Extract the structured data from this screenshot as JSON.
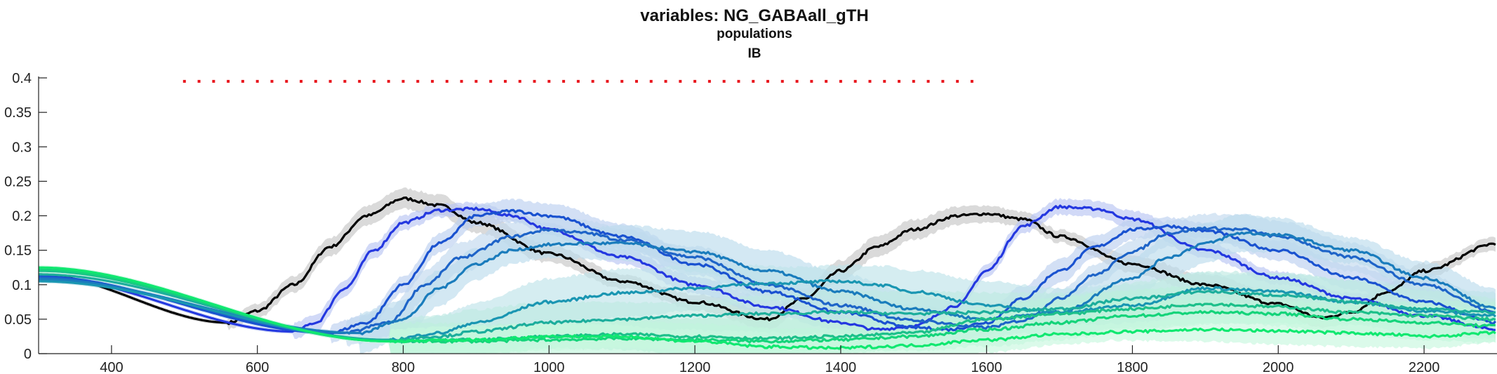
{
  "chart_data": {
    "type": "line",
    "title": "variables: NG_GABAall_gTH",
    "subtitle": "populations",
    "subtitle2": "IB",
    "xlabel": "",
    "ylabel": "",
    "xlim": [
      300,
      2300
    ],
    "ylim": [
      0,
      0.4
    ],
    "xticks": [
      400,
      600,
      800,
      1000,
      1200,
      1400,
      1600,
      1800,
      2000,
      2200
    ],
    "yticks": [
      0,
      0.05,
      0.1,
      0.15,
      0.2,
      0.25,
      0.3,
      0.35,
      0.4
    ],
    "ytick_labels": [
      "0",
      "0.05",
      "0.1",
      "0.15",
      "0.2",
      "0.25",
      "0.3",
      "0.35",
      "0.4"
    ],
    "grid": false,
    "legend": "none",
    "markers": {
      "color": "#e8141c",
      "y": 0.395,
      "x_start": 500,
      "x_end": 1580,
      "step": 20
    },
    "series": [
      {
        "color": "#000000",
        "band": "#c6c6c6",
        "bandwidth": 0.015,
        "x": [
          300,
          560,
          600,
          650,
          700,
          750,
          800,
          850,
          900,
          1000,
          1100,
          1200,
          1300,
          1350,
          1400,
          1450,
          1500,
          1560,
          1600,
          1650,
          1700,
          1800,
          1900,
          2000,
          2060,
          2100,
          2150,
          2200,
          2300
        ],
        "y": [
          0.115,
          0.045,
          0.062,
          0.1,
          0.155,
          0.2,
          0.225,
          0.215,
          0.19,
          0.145,
          0.105,
          0.075,
          0.05,
          0.08,
          0.12,
          0.155,
          0.18,
          0.2,
          0.203,
          0.195,
          0.17,
          0.13,
          0.1,
          0.072,
          0.052,
          0.06,
          0.09,
          0.12,
          0.16
        ]
      },
      {
        "color": "#2438e0",
        "band": "#b8c4f2",
        "bandwidth": 0.012,
        "x": [
          300,
          650,
          680,
          720,
          760,
          800,
          850,
          900,
          950,
          1000,
          1100,
          1200,
          1300,
          1400,
          1450,
          1500,
          1560,
          1600,
          1650,
          1700,
          1750,
          1800,
          1900,
          2000,
          2100,
          2200,
          2300
        ],
        "y": [
          0.112,
          0.032,
          0.045,
          0.095,
          0.15,
          0.19,
          0.208,
          0.21,
          0.2,
          0.18,
          0.14,
          0.1,
          0.068,
          0.045,
          0.035,
          0.04,
          0.07,
          0.12,
          0.185,
          0.213,
          0.21,
          0.195,
          0.15,
          0.11,
          0.08,
          0.055,
          0.035
        ]
      },
      {
        "color": "#1a52d0",
        "band": "#bcd0f0",
        "bandwidth": 0.018,
        "x": [
          300,
          700,
          750,
          800,
          850,
          900,
          950,
          1000,
          1100,
          1200,
          1300,
          1400,
          1500,
          1550,
          1600,
          1650,
          1700,
          1750,
          1800,
          1850,
          1900,
          2000,
          2100,
          2200,
          2300
        ],
        "y": [
          0.112,
          0.03,
          0.045,
          0.1,
          0.16,
          0.2,
          0.207,
          0.2,
          0.17,
          0.13,
          0.09,
          0.06,
          0.038,
          0.035,
          0.045,
          0.08,
          0.12,
          0.155,
          0.18,
          0.185,
          0.178,
          0.15,
          0.11,
          0.075,
          0.045
        ]
      },
      {
        "color": "#1e64c8",
        "band": "#c2d8ee",
        "bandwidth": 0.022,
        "x": [
          300,
          720,
          780,
          830,
          880,
          950,
          1000,
          1050,
          1100,
          1200,
          1300,
          1400,
          1500,
          1600,
          1650,
          1700,
          1750,
          1800,
          1850,
          1900,
          1950,
          2000,
          2100,
          2200,
          2300
        ],
        "y": [
          0.11,
          0.03,
          0.045,
          0.1,
          0.14,
          0.17,
          0.18,
          0.175,
          0.165,
          0.14,
          0.1,
          0.07,
          0.048,
          0.038,
          0.048,
          0.08,
          0.115,
          0.148,
          0.175,
          0.182,
          0.18,
          0.17,
          0.14,
          0.1,
          0.06
        ]
      },
      {
        "color": "#1a7cbc",
        "band": "#bcdcec",
        "bandwidth": 0.03,
        "x": [
          300,
          740,
          800,
          850,
          900,
          950,
          1000,
          1050,
          1100,
          1200,
          1300,
          1400,
          1500,
          1600,
          1700,
          1800,
          1850,
          1900,
          1950,
          2000,
          2100,
          2200,
          2300
        ],
        "y": [
          0.108,
          0.03,
          0.05,
          0.095,
          0.13,
          0.15,
          0.158,
          0.16,
          0.16,
          0.148,
          0.12,
          0.09,
          0.065,
          0.05,
          0.06,
          0.11,
          0.14,
          0.16,
          0.175,
          0.172,
          0.15,
          0.11,
          0.065
        ]
      },
      {
        "color": "#1a96b2",
        "band": "#bfe3ea",
        "bandwidth": 0.035,
        "x": [
          300,
          780,
          850,
          900,
          1000,
          1100,
          1200,
          1300,
          1400,
          1450,
          1500,
          1600,
          1700,
          1800,
          1900,
          2000,
          2100,
          2200,
          2300
        ],
        "y": [
          0.105,
          0.02,
          0.03,
          0.045,
          0.075,
          0.088,
          0.095,
          0.102,
          0.105,
          0.1,
          0.09,
          0.07,
          0.06,
          0.07,
          0.095,
          0.09,
          0.075,
          0.062,
          0.055
        ]
      },
      {
        "color": "#1cae9c",
        "band": "#bfe9e2",
        "bandwidth": 0.032,
        "x": [
          300,
          780,
          850,
          900,
          1000,
          1100,
          1200,
          1300,
          1400,
          1500,
          1600,
          1700,
          1800,
          1900,
          2000,
          2100,
          2200,
          2300
        ],
        "y": [
          0.115,
          0.02,
          0.025,
          0.032,
          0.045,
          0.05,
          0.055,
          0.058,
          0.06,
          0.058,
          0.06,
          0.065,
          0.08,
          0.09,
          0.085,
          0.075,
          0.065,
          0.06
        ]
      },
      {
        "color": "#1cc08a",
        "band": "#bdf0dc",
        "bandwidth": 0.028,
        "x": [
          300,
          780,
          900,
          1000,
          1100,
          1200,
          1300,
          1400,
          1500,
          1600,
          1700,
          1800,
          1900,
          2000,
          2100,
          2200,
          2300
        ],
        "y": [
          0.12,
          0.018,
          0.02,
          0.025,
          0.028,
          0.025,
          0.022,
          0.025,
          0.03,
          0.05,
          0.058,
          0.065,
          0.072,
          0.068,
          0.06,
          0.055,
          0.05
        ]
      },
      {
        "color": "#14d47a",
        "band": "#c0f5dc",
        "bandwidth": 0.025,
        "x": [
          300,
          780,
          900,
          1000,
          1100,
          1200,
          1300,
          1400,
          1500,
          1600,
          1700,
          1800,
          1900,
          2000,
          2100,
          2200,
          2300
        ],
        "y": [
          0.122,
          0.018,
          0.018,
          0.02,
          0.022,
          0.02,
          0.018,
          0.02,
          0.025,
          0.035,
          0.045,
          0.055,
          0.06,
          0.058,
          0.05,
          0.045,
          0.04
        ]
      },
      {
        "color": "#10e870",
        "band": "#c8f8de",
        "bandwidth": 0.02,
        "x": [
          300,
          780,
          900,
          1000,
          1100,
          1200,
          1300,
          1400,
          1450,
          1500,
          1600,
          1700,
          1800,
          1900,
          2000,
          2100,
          2150,
          2200,
          2300
        ],
        "y": [
          0.125,
          0.018,
          0.02,
          0.025,
          0.025,
          0.018,
          0.01,
          0.008,
          0.01,
          0.012,
          0.02,
          0.028,
          0.032,
          0.035,
          0.033,
          0.03,
          0.028,
          0.025,
          0.03
        ]
      }
    ]
  }
}
